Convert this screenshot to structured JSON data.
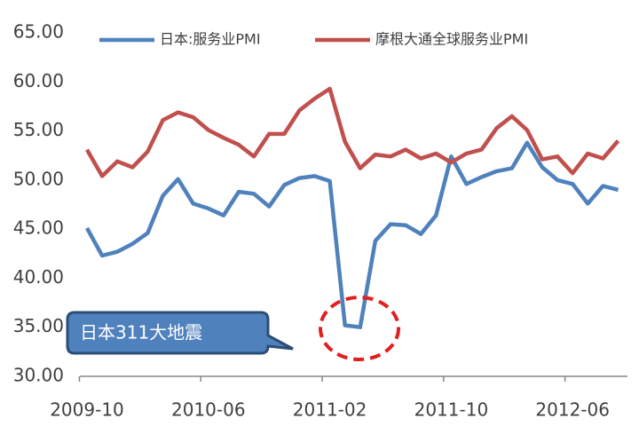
{
  "chart_data": {
    "type": "line",
    "categories": [
      "2009-10",
      null,
      null,
      null,
      null,
      null,
      null,
      null,
      "2010-06",
      null,
      null,
      null,
      null,
      null,
      null,
      null,
      "2011-02",
      null,
      null,
      null,
      null,
      null,
      null,
      null,
      "2011-10",
      null,
      null,
      null,
      null,
      null,
      null,
      null,
      "2012-06",
      null,
      null,
      null
    ],
    "series": [
      {
        "name": "日本:服务业PMI",
        "color": "#4f81bd",
        "values": [
          45.1,
          42.3,
          42.7,
          43.5,
          44.6,
          48.4,
          50.1,
          47.6,
          47.1,
          46.4,
          48.8,
          48.6,
          47.3,
          49.5,
          50.2,
          50.4,
          49.9,
          35.2,
          35.0,
          43.8,
          45.5,
          45.4,
          44.5,
          46.4,
          52.4,
          49.6,
          50.3,
          50.9,
          51.2,
          53.8,
          51.3,
          50.0,
          49.6,
          47.6,
          49.4,
          49.0
        ]
      },
      {
        "name": "摩根大通全球服务业PMI",
        "color": "#c0504d",
        "values": [
          53.1,
          50.4,
          51.9,
          51.3,
          52.9,
          56.1,
          56.9,
          56.4,
          55.1,
          54.3,
          53.6,
          52.4,
          54.7,
          54.7,
          57.1,
          58.3,
          59.3,
          53.9,
          51.2,
          52.6,
          52.4,
          53.1,
          52.2,
          52.7,
          51.8,
          52.7,
          53.1,
          55.3,
          56.5,
          55.1,
          52.1,
          52.4,
          50.7,
          52.7,
          52.2,
          54.0
        ]
      }
    ],
    "ylim": [
      30,
      65
    ],
    "yticks": [
      {
        "value": 30,
        "label": "30.00"
      },
      {
        "value": 35,
        "label": "35.00"
      },
      {
        "value": 40,
        "label": "40.00"
      },
      {
        "value": 45,
        "label": "45.00"
      },
      {
        "value": 50,
        "label": "50.00"
      },
      {
        "value": 55,
        "label": "55.00"
      },
      {
        "value": 60,
        "label": "60.00"
      },
      {
        "value": 65,
        "label": "65.00"
      }
    ],
    "legend": "top",
    "annotation": "日本311大地震"
  }
}
